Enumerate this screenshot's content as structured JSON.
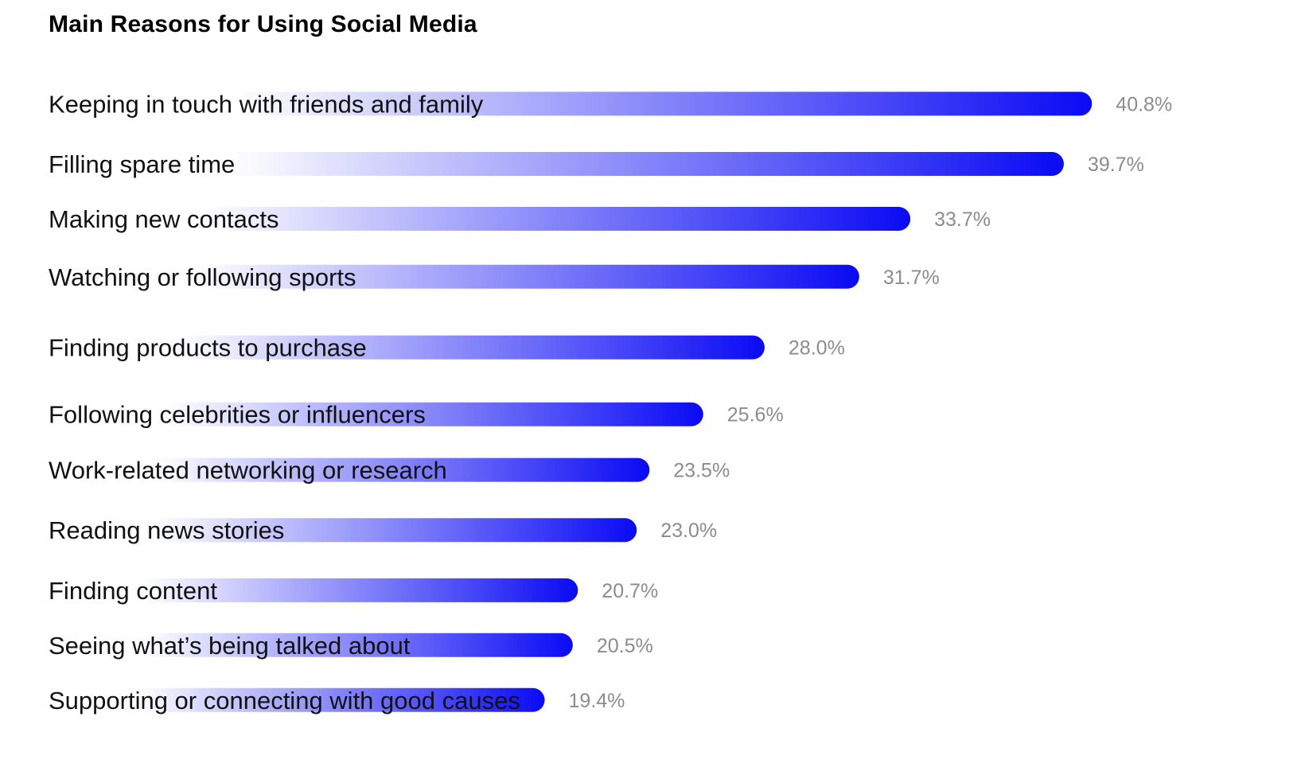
{
  "chart_data": {
    "type": "bar",
    "orientation": "horizontal",
    "title": "Main Reasons for Using Social Media",
    "categories": [
      "Keeping in touch with friends and family",
      "Filling spare time",
      "Making new contacts",
      "Watching or following sports",
      "Finding products to purchase",
      "Following celebrities or influencers",
      "Work-related networking or research",
      "Reading news stories",
      "Finding content",
      "Seeing what’s being talked about",
      "Supporting or connecting with good causes"
    ],
    "values": [
      40.8,
      39.7,
      33.7,
      31.7,
      28.0,
      25.6,
      23.5,
      23.0,
      20.7,
      20.5,
      19.4
    ],
    "value_labels": [
      "40.8%",
      "39.7%",
      "33.7%",
      "31.7%",
      "28.0%",
      "25.6%",
      "23.5%",
      "23.0%",
      "20.7%",
      "20.5%",
      "19.4%"
    ],
    "unit": "%",
    "grid": false,
    "legend": "none",
    "colors": {
      "bar_start": "#ffffff",
      "bar_end": "#0a0af5",
      "label": "#111111",
      "value": "#8c8c8c",
      "title": "#000000"
    }
  }
}
